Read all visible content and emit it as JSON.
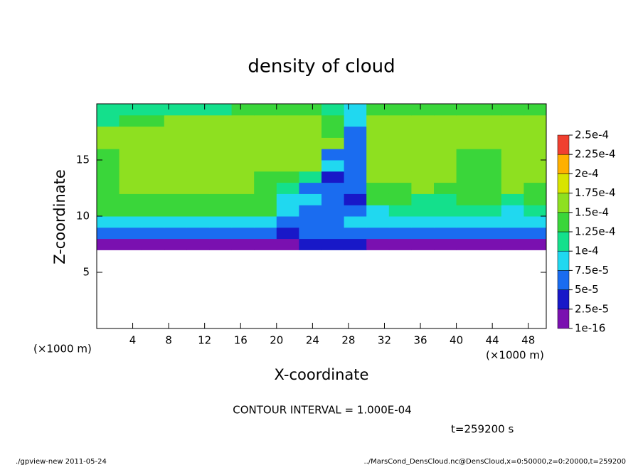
{
  "chart_data": {
    "type": "heatmap",
    "title": "density of cloud",
    "x_label": "X-coordinate",
    "y_label": "Z-coordinate",
    "x_unit": "(×1000 m)",
    "xlim": [
      0,
      50
    ],
    "ylim": [
      0,
      20
    ],
    "xticks": [
      4,
      8,
      12,
      16,
      20,
      24,
      28,
      32,
      36,
      40,
      44,
      48
    ],
    "yticks": [
      5,
      10,
      15
    ],
    "x": [
      1.25,
      3.75,
      6.25,
      8.75,
      11.25,
      13.75,
      16.25,
      18.75,
      21.25,
      23.75,
      26.25,
      28.75,
      31.25,
      33.75,
      36.25,
      38.75,
      41.25,
      43.75,
      46.25,
      48.75
    ],
    "y": [
      7.5,
      8.5,
      9.5,
      10.5,
      11.5,
      12.5,
      13.5,
      14.5,
      15.5,
      16.5,
      17.5,
      18.5,
      19.5
    ],
    "values": [
      [
        2e-05,
        2e-05,
        2e-05,
        2e-05,
        2e-05,
        2e-05,
        2e-05,
        2e-05,
        1e-05,
        3e-05,
        3e-05,
        3e-05,
        2e-05,
        2e-05,
        2e-05,
        2e-05,
        2e-05,
        2e-05,
        2e-05,
        2e-05
      ],
      [
        6e-05,
        6e-05,
        6e-05,
        6e-05,
        6e-05,
        6e-05,
        6e-05,
        6e-05,
        4e-05,
        5e-05,
        6e-05,
        6e-05,
        6e-05,
        6e-05,
        6e-05,
        6e-05,
        6e-05,
        6e-05,
        5e-05,
        6e-05
      ],
      [
        9e-05,
        9e-05,
        9e-05,
        9e-05,
        9e-05,
        9e-05,
        9e-05,
        9e-05,
        6e-05,
        7e-05,
        6e-05,
        8e-05,
        9e-05,
        9e-05,
        9e-05,
        9e-05,
        9e-05,
        8e-05,
        8e-05,
        9e-05
      ],
      [
        0.00013,
        0.00013,
        0.00013,
        0.00013,
        0.00013,
        0.00013,
        0.00013,
        0.00013,
        8e-05,
        6e-05,
        7e-05,
        5e-05,
        9e-05,
        0.00011,
        0.00011,
        0.00011,
        0.00011,
        0.0001,
        9e-05,
        0.00011
      ],
      [
        0.00014,
        0.00014,
        0.00014,
        0.00014,
        0.00014,
        0.00014,
        0.00014,
        0.00014,
        9e-05,
        8e-05,
        6e-05,
        4e-05,
        0.00013,
        0.00013,
        0.00012,
        0.00012,
        0.00013,
        0.00013,
        0.00012,
        0.00013
      ],
      [
        0.00014,
        0.00015,
        0.00015,
        0.00015,
        0.00015,
        0.00015,
        0.00015,
        0.00014,
        0.00012,
        6e-05,
        5e-05,
        5e-05,
        0.00014,
        0.00014,
        0.00015,
        0.00014,
        0.00014,
        0.00013,
        0.00016,
        0.00014
      ],
      [
        0.00014,
        0.00015,
        0.00015,
        0.00015,
        0.00015,
        0.00015,
        0.00015,
        0.00014,
        0.00013,
        0.0001,
        4e-05,
        6e-05,
        0.00015,
        0.00015,
        0.00015,
        0.00015,
        0.00014,
        0.00014,
        0.00017,
        0.00015
      ],
      [
        0.00014,
        0.00015,
        0.00015,
        0.00015,
        0.00015,
        0.00015,
        0.00015,
        0.00015,
        0.00016,
        0.00016,
        8e-05,
        5e-05,
        0.00015,
        0.00015,
        0.00015,
        0.00015,
        0.00014,
        0.00014,
        0.00017,
        0.00016
      ],
      [
        0.00014,
        0.00015,
        0.00015,
        0.00015,
        0.00015,
        0.00015,
        0.00015,
        0.00015,
        0.00015,
        0.00016,
        7e-05,
        6e-05,
        0.00015,
        0.00015,
        0.00015,
        0.00015,
        0.00014,
        0.00014,
        0.00017,
        0.00016
      ],
      [
        0.00015,
        0.00015,
        0.00015,
        0.00015,
        0.00015,
        0.00015,
        0.00015,
        0.00015,
        0.00015,
        0.00015,
        0.00015,
        6e-05,
        0.00015,
        0.00015,
        0.00015,
        0.00015,
        0.00015,
        0.00015,
        0.00016,
        0.00015
      ],
      [
        0.00015,
        0.00015,
        0.00015,
        0.00015,
        0.00015,
        0.00015,
        0.00015,
        0.00015,
        0.00015,
        0.00015,
        0.00014,
        7e-05,
        0.00015,
        0.00015,
        0.00015,
        0.00015,
        0.00015,
        0.00015,
        0.00015,
        0.00015
      ],
      [
        0.00012,
        0.00013,
        0.00014,
        0.00015,
        0.00015,
        0.00015,
        0.00015,
        0.00015,
        0.00015,
        0.00015,
        0.00014,
        8e-05,
        0.00015,
        0.00015,
        0.00015,
        0.00015,
        0.00015,
        0.00015,
        0.00015,
        0.00015
      ],
      [
        0.0001,
        0.0001,
        0.0001,
        0.00011,
        0.00011,
        0.00012,
        0.00013,
        0.00014,
        0.00014,
        0.00013,
        0.00011,
        8e-05,
        0.00014,
        0.00014,
        0.00014,
        0.00014,
        0.00014,
        0.00014,
        0.00014,
        0.00014
      ]
    ],
    "colorbar": {
      "ticks": [
        {
          "value": 1e-16,
          "label": "1e-16"
        },
        {
          "value": 2.5e-05,
          "label": "2.5e-5"
        },
        {
          "value": 5e-05,
          "label": "5e-5"
        },
        {
          "value": 7.5e-05,
          "label": "7.5e-5"
        },
        {
          "value": 0.0001,
          "label": "1e-4"
        },
        {
          "value": 0.000125,
          "label": "1.25e-4"
        },
        {
          "value": 0.00015,
          "label": "1.5e-4"
        },
        {
          "value": 0.000175,
          "label": "1.75e-4"
        },
        {
          "value": 0.0002,
          "label": "2e-4"
        },
        {
          "value": 0.000225,
          "label": "2.25e-4"
        },
        {
          "value": 0.00025,
          "label": "2.5e-4"
        }
      ],
      "colors": [
        "#7a10b0",
        "#1818c8",
        "#1a6cf0",
        "#20d8f0",
        "#14e08c",
        "#3ad63a",
        "#8ee020",
        "#d8e400",
        "#ffb000",
        "#f04030"
      ]
    },
    "contour_interval": "CONTOUR INTERVAL = 1.000E-04",
    "time_label": "t=259200 s",
    "footer_left": "./gpview-new  2011-05-24",
    "footer_right": "../MarsCond_DensCloud.nc@DensCloud,x=0:50000,z=0:20000,t=259200"
  }
}
